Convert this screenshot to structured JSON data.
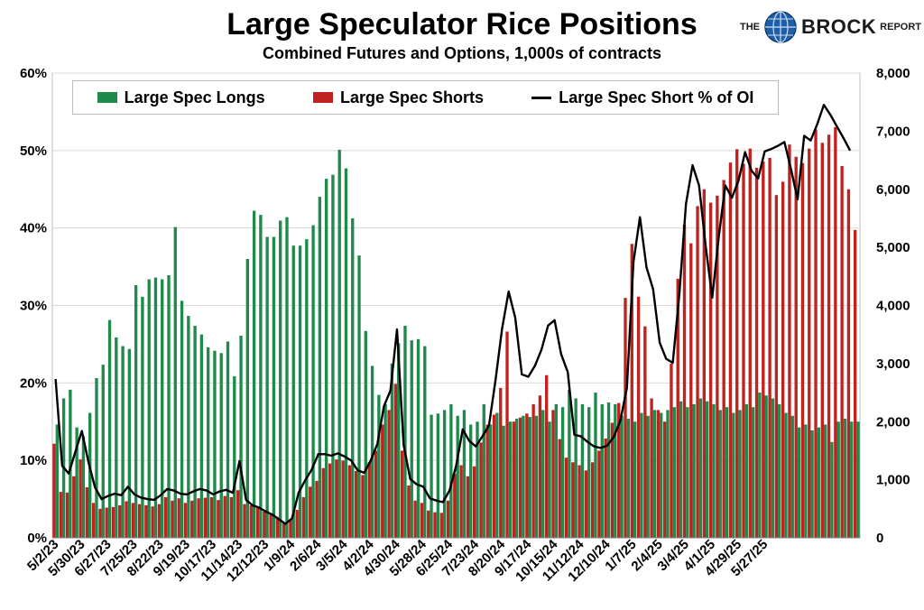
{
  "title": "Large Speculator Rice Positions",
  "subtitle": "Combined Futures and Options, 1,000s of contracts",
  "logo": {
    "the": "THE",
    "brock": "BROCK",
    "report": "REPORT"
  },
  "colors": {
    "longs": "#1f8a4c",
    "shorts": "#c0221f",
    "line": "#000000"
  },
  "legend": {
    "longs": "Large Spec Longs",
    "shorts": "Large Spec Shorts",
    "line": "Large Spec Short % of OI"
  },
  "chart_data": {
    "type": "bar",
    "left_axis": {
      "ticks": [
        "0%",
        "10%",
        "20%",
        "30%",
        "40%",
        "50%",
        "60%"
      ],
      "ylim": [
        0,
        60
      ]
    },
    "right_axis": {
      "ticks": [
        "0",
        "1,000",
        "2,000",
        "3,000",
        "4,000",
        "5,000",
        "6,000",
        "7,000",
        "8,000"
      ],
      "ylim": [
        0,
        8000
      ]
    },
    "x_tick_labels": [
      "5/2/23",
      "5/30/23",
      "6/27/23",
      "7/25/23",
      "8/22/23",
      "9/19/23",
      "10/17/23",
      "11/14/23",
      "12/12/23",
      "1/9/24",
      "2/6/24",
      "3/5/24",
      "4/2/24",
      "4/30/24",
      "5/28/24",
      "6/25/24",
      "7/23/24",
      "8/20/24",
      "9/17/24",
      "10/15/24",
      "11/12/24",
      "12/10/24",
      "1/7/25",
      "2/4/25",
      "3/4/25",
      "4/1/25",
      "4/29/25",
      "5/27/25"
    ],
    "x_tick_every": 4,
    "grid": true,
    "legend_position": "top",
    "series": [
      {
        "name": "Large Spec Longs",
        "axis": "right",
        "values": [
          1950,
          2400,
          2550,
          1900,
          1750,
          2150,
          2750,
          2980,
          3750,
          3450,
          3300,
          3250,
          4350,
          4150,
          4450,
          4480,
          4450,
          4520,
          5350,
          4080,
          3820,
          3650,
          3500,
          3280,
          3220,
          3180,
          3380,
          2780,
          3480,
          4800,
          5630,
          5560,
          5180,
          5180,
          5460,
          5520,
          5030,
          5030,
          5140,
          5380,
          5870,
          6180,
          6250,
          6680,
          6360,
          5500,
          4860,
          3560,
          2960,
          2460,
          2300,
          3000,
          3350,
          3650,
          3400,
          3420,
          3300,
          2120,
          2140,
          2200,
          2300,
          2100,
          2200,
          1950,
          2000,
          2300,
          1950,
          2150,
          1930,
          2000,
          2050,
          2100,
          2080,
          2100,
          2200,
          2000,
          2300,
          2250,
          2550,
          2400,
          2300,
          2250,
          2500,
          2300,
          2330,
          2300,
          2100,
          2050,
          2000,
          2150,
          2100,
          2200,
          2150,
          2200,
          2250,
          2350,
          2250,
          2300,
          2400,
          2350,
          2300,
          2200,
          2250,
          2150,
          2200,
          2300,
          2250,
          2500,
          2450,
          2400,
          2300,
          2150,
          2100,
          1900,
          1950,
          1850,
          1900,
          1950,
          1650,
          2000,
          2050,
          2000,
          2000
        ]
      },
      {
        "name": "Large Spec Shorts",
        "axis": "right",
        "values": [
          1620,
          790,
          780,
          1060,
          1350,
          870,
          600,
          500,
          520,
          530,
          560,
          630,
          600,
          580,
          560,
          540,
          580,
          700,
          640,
          680,
          600,
          640,
          680,
          690,
          700,
          650,
          720,
          700,
          820,
          580,
          560,
          520,
          450,
          400,
          360,
          260,
          320,
          480,
          700,
          880,
          980,
          1200,
          1280,
          1350,
          1330,
          1250,
          1150,
          1080,
          1300,
          1500,
          1950,
          2200,
          2650,
          1500,
          900,
          640,
          600,
          470,
          440,
          430,
          640,
          1100,
          1250,
          1060,
          1230,
          1640,
          1950,
          2120,
          2580,
          3550,
          2000,
          2070,
          2140,
          2300,
          2450,
          2800,
          2200,
          1700,
          1380,
          1300,
          1250,
          1160,
          1300,
          1500,
          1710,
          1980,
          2320,
          4130,
          5060,
          4150,
          3640,
          2400,
          2200,
          2000,
          3000,
          4460,
          5390,
          5070,
          5710,
          6000,
          5770,
          5890,
          6160,
          6460,
          6690,
          6440,
          6700,
          6370,
          6480,
          6540,
          5900,
          6130,
          6770,
          6560,
          6450,
          6700,
          7030,
          6800,
          6940,
          7070,
          6400,
          6000,
          5300
        ]
      },
      {
        "name": "Large Spec Short % of OI",
        "axis": "left",
        "type": "line",
        "values": [
          20.5,
          9.3,
          8.3,
          11.1,
          13.8,
          9.8,
          6.5,
          5.0,
          5.4,
          5.7,
          5.5,
          6.6,
          5.6,
          5.2,
          5.0,
          4.9,
          5.5,
          6.3,
          6.1,
          5.7,
          5.6,
          6.0,
          6.3,
          6.1,
          5.6,
          6.0,
          6.2,
          5.8,
          9.9,
          4.9,
          4.2,
          3.9,
          3.4,
          3.0,
          2.4,
          1.8,
          2.5,
          5.8,
          7.4,
          8.8,
          10.8,
          10.8,
          10.6,
          10.9,
          10.5,
          10.0,
          8.7,
          8.4,
          10.0,
          12.1,
          17.0,
          19.0,
          26.9,
          12.0,
          7.6,
          6.9,
          6.6,
          5.1,
          4.8,
          4.6,
          6.1,
          9.3,
          14.0,
          12.5,
          11.8,
          13.1,
          14.5,
          20.4,
          27.0,
          31.8,
          28.4,
          21.1,
          20.8,
          22.2,
          24.3,
          27.4,
          28.1,
          23.7,
          21.4,
          13.3,
          13.1,
          12.4,
          11.8,
          11.6,
          11.9,
          13.0,
          15.1,
          19.3,
          35.6,
          41.4,
          34.9,
          32.1,
          25.2,
          23.1,
          22.6,
          31.5,
          43.1,
          48.1,
          45.5,
          37.7,
          31.0,
          38.9,
          45.5,
          43.9,
          46.1,
          49.8,
          47.4,
          46.4,
          49.9,
          50.2,
          50.6,
          51.1,
          47.6,
          43.7,
          51.9,
          51.3,
          53.4,
          55.9,
          54.6,
          53.1,
          51.6,
          50.0
        ]
      }
    ]
  }
}
